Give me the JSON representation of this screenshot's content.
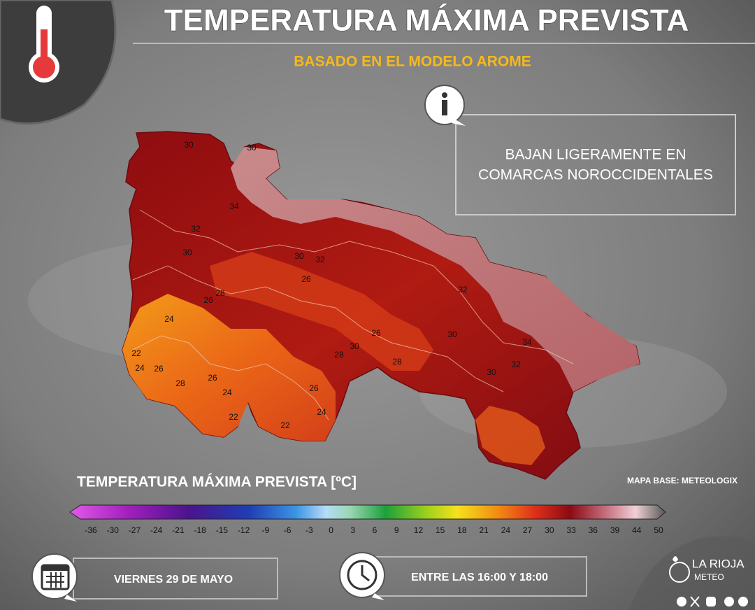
{
  "header": {
    "title": "TEMPERATURA MÁXIMA PREVISTA",
    "subtitle": "BASADO EN EL MODELO AROME"
  },
  "info": {
    "lines": [
      "BAJAN LIGERAMENTE EN",
      "COMARCAS NOROCCIDENTALES"
    ]
  },
  "map": {
    "contour_labels": [
      30,
      30,
      34,
      32,
      30,
      30,
      32,
      26,
      28,
      26,
      24,
      32,
      22,
      24,
      26,
      28,
      26,
      24,
      30,
      28,
      26,
      30,
      34,
      32,
      30,
      28,
      26,
      24,
      22,
      22
    ],
    "credit": "MAPA BASE: METEOLOGIX"
  },
  "legend": {
    "title": "TEMPERATURA MÁXIMA PREVISTA [ºC]",
    "ticks": [
      -36,
      -30,
      -27,
      -24,
      -21,
      -18,
      -15,
      -12,
      -9,
      -6,
      -3,
      0,
      3,
      6,
      9,
      12,
      15,
      18,
      21,
      24,
      27,
      30,
      33,
      36,
      39,
      44,
      50
    ]
  },
  "footer": {
    "date": "VIERNES 29 DE MAYO",
    "time": "ENTRE LAS 16:00 Y 18:00",
    "brand": "LA RIOJA",
    "brand_sub": "METEO"
  }
}
